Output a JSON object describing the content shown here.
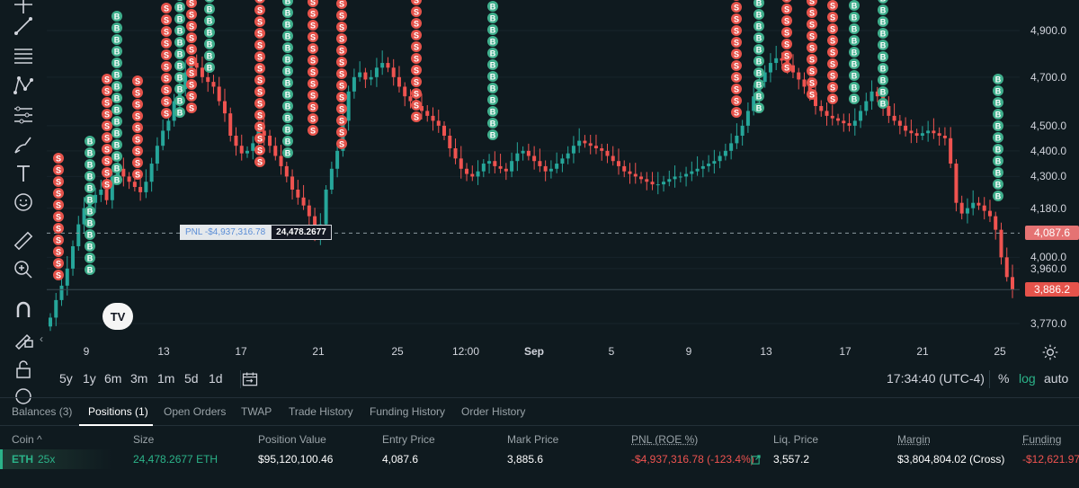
{
  "toolbar": {
    "tools": [
      {
        "name": "cursor-icon"
      },
      {
        "name": "trend-line-icon"
      },
      {
        "name": "horizontal-lines-icon"
      },
      {
        "name": "pattern-icon"
      },
      {
        "name": "fib-icon"
      },
      {
        "name": "brush-icon"
      },
      {
        "name": "text-icon"
      },
      {
        "name": "emoji-icon"
      },
      {
        "name": "ruler-icon"
      },
      {
        "name": "zoom-in-icon"
      },
      {
        "name": "magnet-icon"
      },
      {
        "name": "lock-drawing-icon"
      },
      {
        "name": "lock-icon"
      },
      {
        "name": "eye-icon"
      }
    ]
  },
  "chart": {
    "pnl_label": "PNL -$4,937,316.78",
    "position_size": "24,478.2677",
    "logo_text": "TV",
    "collapse_glyph": "‹"
  },
  "chart_data": {
    "type": "candlestick",
    "symbol": "ETH",
    "scale": "log",
    "y_ticks": [
      4900,
      4700,
      4500,
      4400,
      4300,
      4180,
      4000,
      3960,
      3770
    ],
    "y_tick_labels": [
      "4,900.0",
      "4,700.0",
      "4,500.0",
      "4,400.0",
      "4,300.0",
      "4,180.0",
      "4,000.0",
      "3,960.0",
      "3,770.0"
    ],
    "entry_price": 4087.6,
    "entry_price_label": "4,087.6",
    "mark_price": 3886.2,
    "mark_price_label": "3,886.2",
    "x_ticks": [
      "9",
      "13",
      "17",
      "21",
      "25",
      "12:00",
      "Sep",
      "5",
      "9",
      "13",
      "17",
      "21",
      "25"
    ],
    "grid": true,
    "markers": [
      {
        "cluster": 1,
        "x": "Aug 7",
        "side": "S",
        "count": 11
      },
      {
        "cluster": 2,
        "x": "Aug 7",
        "side": "B",
        "count": 12
      },
      {
        "cluster": 3,
        "x": "Aug 8",
        "side": "S",
        "count": 10
      },
      {
        "cluster": 4,
        "x": "Aug 8",
        "side": "B",
        "count": 15
      },
      {
        "cluster": 5,
        "x": "Aug 11",
        "side": "S",
        "count": 9
      },
      {
        "cluster": 6,
        "x": "Aug 12",
        "side": "S",
        "count": 10
      },
      {
        "cluster": 7,
        "x": "Aug 12",
        "side": "B",
        "count": 17
      },
      {
        "cluster": 8,
        "x": "Aug 13",
        "side": "S",
        "count": 19
      },
      {
        "cluster": 9,
        "x": "Aug 14",
        "side": "B",
        "count": 22
      },
      {
        "cluster": 10,
        "x": "Aug 18",
        "side": "S",
        "count": 28
      },
      {
        "cluster": 11,
        "x": "Aug 18",
        "side": "B",
        "count": 25
      },
      {
        "cluster": 12,
        "x": "Aug 20",
        "side": "S",
        "count": 20
      },
      {
        "cluster": 13,
        "x": "Aug 21",
        "side": "S",
        "count": 19
      },
      {
        "cluster": 14,
        "x": "Aug 25",
        "side": "S",
        "count": 20
      },
      {
        "cluster": 15,
        "x": "Aug 26",
        "side": "B",
        "count": 22
      },
      {
        "cluster": 16,
        "x": "Sep 11",
        "side": "S",
        "count": 20
      },
      {
        "cluster": 17,
        "x": "Sep 12",
        "side": "B",
        "count": 22
      },
      {
        "cluster": 18,
        "x": "Sep 13",
        "side": "S",
        "count": 25
      },
      {
        "cluster": 19,
        "x": "Sep 15",
        "side": "S",
        "count": 20
      },
      {
        "cluster": 20,
        "x": "Sep 17",
        "side": "S",
        "count": 20
      },
      {
        "cluster": 21,
        "x": "Sep 18",
        "side": "B",
        "count": 22
      },
      {
        "cluster": 22,
        "x": "Sep 19",
        "side": "B",
        "count": 20
      },
      {
        "cluster": 23,
        "x": "Sep 25",
        "side": "B",
        "count": 11
      }
    ],
    "candles_close": [
      3790,
      3850,
      3900,
      3960,
      4040,
      4120,
      4180,
      4200,
      4230,
      4250,
      4210,
      4300,
      4330,
      4300,
      4280,
      4260,
      4240,
      4280,
      4350,
      4420,
      4480,
      4520,
      4600,
      4650,
      4720,
      4760,
      4740,
      4700,
      4680,
      4660,
      4600,
      4550,
      4460,
      4420,
      4390,
      4400,
      4430,
      4480,
      4460,
      4420,
      4380,
      4340,
      4300,
      4250,
      4220,
      4190,
      4150,
      4080,
      4120,
      4250,
      4330,
      4400,
      4520,
      4640,
      4700,
      4720,
      4690,
      4700,
      4740,
      4760,
      4740,
      4700,
      4660,
      4620,
      4600,
      4580,
      4560,
      4540,
      4520,
      4500,
      4460,
      4410,
      4370,
      4330,
      4310,
      4300,
      4320,
      4350,
      4360,
      4340,
      4330,
      4320,
      4360,
      4390,
      4400,
      4380,
      4360,
      4340,
      4320,
      4330,
      4350,
      4370,
      4390,
      4420,
      4440,
      4430,
      4420,
      4410,
      4400,
      4380,
      4360,
      4340,
      4320,
      4310,
      4300,
      4290,
      4280,
      4270,
      4270,
      4280,
      4290,
      4300,
      4300,
      4310,
      4320,
      4330,
      4340,
      4350,
      4360,
      4380,
      4400,
      4430,
      4460,
      4500,
      4560,
      4620,
      4680,
      4720,
      4760,
      4780,
      4770,
      4750,
      4720,
      4690,
      4660,
      4620,
      4580,
      4560,
      4540,
      4530,
      4520,
      4510,
      4500,
      4520,
      4560,
      4600,
      4640,
      4620,
      4580,
      4540,
      4520,
      4500,
      4480,
      4470,
      4460,
      4470,
      4480,
      4470,
      4460,
      4450,
      4350,
      4200,
      4160,
      4180,
      4200,
      4190,
      4170,
      4150,
      4100,
      4000,
      3930,
      3886
    ]
  },
  "bottom": {
    "ranges": [
      "5y",
      "1y",
      "6m",
      "3m",
      "1m",
      "5d",
      "1d"
    ],
    "timestamp": "17:34:40 (UTC-4)",
    "percent": "%",
    "log": "log",
    "auto": "auto"
  },
  "tabs": [
    {
      "label": "Balances (3)"
    },
    {
      "label": "Positions (1)"
    },
    {
      "label": "Open Orders"
    },
    {
      "label": "TWAP"
    },
    {
      "label": "Trade History"
    },
    {
      "label": "Funding History"
    },
    {
      "label": "Order History"
    }
  ],
  "table": {
    "headers": {
      "coin": "Coin ^",
      "size": "Size",
      "position_value": "Position Value",
      "entry_price": "Entry Price",
      "mark_price": "Mark Price",
      "pnl": "PNL (ROE %)",
      "liq_price": "Liq. Price",
      "margin": "Margin",
      "funding": "Funding"
    },
    "row": {
      "coin": "ETH",
      "leverage": "25x",
      "size": "24,478.2677 ETH",
      "position_value": "$95,120,100.46",
      "entry_price": "4,087.6",
      "mark_price": "3,885.6",
      "pnl": "-$4,937,316.78 (-123.4%)",
      "liq_price": "3,557.2",
      "margin": "$3,804,804.02 (Cross)",
      "funding": "-$12,621.97"
    }
  },
  "colors": {
    "up": "#26a69a",
    "down": "#ef5350",
    "marker_buy": "#3fae8c",
    "marker_sell": "#e5534b",
    "green_text": "#2bb389",
    "red_text": "#ef5350",
    "entry_badge": "#e57373",
    "mark_badge": "#e5534b"
  }
}
